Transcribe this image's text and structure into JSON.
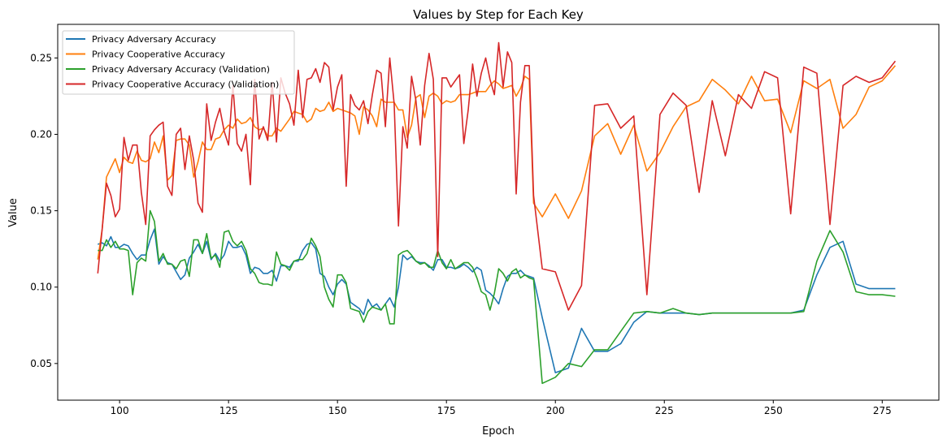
{
  "chart_data": {
    "type": "line",
    "title": "Values by Step for Each Key",
    "xlabel": "Epoch",
    "ylabel": "Value",
    "xlim": [
      85.8,
      288
    ],
    "ylim": [
      0.026,
      0.272
    ],
    "xticks": [
      100,
      125,
      150,
      175,
      200,
      225,
      250,
      275
    ],
    "xtick_labels": [
      "100",
      "125",
      "150",
      "175",
      "200",
      "225",
      "250",
      "275"
    ],
    "yticks": [
      0.05,
      0.1,
      0.15,
      0.2,
      0.25
    ],
    "ytick_labels": [
      "0.05",
      "0.10",
      "0.15",
      "0.20",
      "0.25"
    ],
    "grid": false,
    "legend_placement": "upper-left",
    "x": [
      95,
      96,
      97,
      98,
      99,
      100,
      101,
      102,
      103,
      104,
      105,
      106,
      107,
      108,
      109,
      110,
      111,
      112,
      113,
      114,
      115,
      116,
      117,
      118,
      119,
      120,
      121,
      122,
      123,
      124,
      125,
      126,
      127,
      128,
      129,
      130,
      131,
      132,
      133,
      134,
      135,
      136,
      137,
      138,
      139,
      140,
      141,
      142,
      143,
      144,
      145,
      146,
      147,
      148,
      149,
      150,
      151,
      152,
      153,
      154,
      155,
      156,
      157,
      158,
      159,
      160,
      161,
      162,
      163,
      164,
      165,
      166,
      167,
      168,
      169,
      170,
      171,
      172,
      173,
      174,
      175,
      176,
      177,
      178,
      179,
      180,
      181,
      182,
      183,
      184,
      185,
      186,
      187,
      188,
      189,
      190,
      191,
      192,
      193,
      194,
      195,
      197,
      200,
      203,
      206,
      209,
      212,
      215,
      218,
      221,
      224,
      227,
      230,
      233,
      236,
      239,
      242,
      245,
      248,
      251,
      254,
      257,
      260,
      263,
      266,
      269,
      272,
      275,
      278
    ],
    "series": [
      {
        "name": "Privacy Adversary Accuracy",
        "color": "#1f77b4",
        "values": [
          0.128,
          0.129,
          0.127,
          0.133,
          0.126,
          0.126,
          0.128,
          0.127,
          0.122,
          0.118,
          0.121,
          0.121,
          0.131,
          0.138,
          0.115,
          0.12,
          0.116,
          0.115,
          0.11,
          0.105,
          0.108,
          0.119,
          0.123,
          0.128,
          0.122,
          0.13,
          0.118,
          0.122,
          0.117,
          0.121,
          0.13,
          0.126,
          0.126,
          0.127,
          0.121,
          0.109,
          0.113,
          0.112,
          0.109,
          0.109,
          0.111,
          0.104,
          0.114,
          0.114,
          0.113,
          0.117,
          0.117,
          0.124,
          0.128,
          0.129,
          0.125,
          0.109,
          0.107,
          0.1,
          0.095,
          0.102,
          0.105,
          0.102,
          0.09,
          0.088,
          0.086,
          0.082,
          0.092,
          0.087,
          0.089,
          0.085,
          0.089,
          0.093,
          0.087,
          0.1,
          0.121,
          0.118,
          0.12,
          0.117,
          0.116,
          0.116,
          0.114,
          0.111,
          0.118,
          0.118,
          0.113,
          0.113,
          0.112,
          0.113,
          0.115,
          0.113,
          0.11,
          0.113,
          0.111,
          0.098,
          0.096,
          0.093,
          0.089,
          0.099,
          0.107,
          0.109,
          0.109,
          0.111,
          0.108,
          0.107,
          0.106,
          0.08,
          0.044,
          0.047,
          0.073,
          0.058,
          0.058,
          0.063,
          0.077,
          0.084,
          0.083,
          0.083,
          0.083,
          0.082,
          0.083,
          0.083,
          0.083,
          0.083,
          0.083,
          0.083,
          0.083,
          0.085,
          0.108,
          0.126,
          0.13,
          0.102,
          0.099,
          0.099,
          0.099
        ]
      },
      {
        "name": "Privacy Cooperative Accuracy",
        "color": "#ff7f0e",
        "values": [
          0.118,
          0.138,
          0.172,
          0.178,
          0.184,
          0.175,
          0.185,
          0.182,
          0.181,
          0.189,
          0.183,
          0.182,
          0.184,
          0.195,
          0.188,
          0.199,
          0.17,
          0.173,
          0.196,
          0.197,
          0.197,
          0.193,
          0.172,
          0.182,
          0.195,
          0.19,
          0.19,
          0.197,
          0.198,
          0.203,
          0.206,
          0.204,
          0.21,
          0.207,
          0.208,
          0.211,
          0.205,
          0.203,
          0.204,
          0.199,
          0.199,
          0.204,
          0.202,
          0.206,
          0.21,
          0.215,
          0.214,
          0.213,
          0.208,
          0.21,
          0.217,
          0.215,
          0.216,
          0.221,
          0.215,
          0.217,
          0.216,
          0.215,
          0.214,
          0.212,
          0.2,
          0.218,
          0.216,
          0.212,
          0.205,
          0.223,
          0.221,
          0.221,
          0.221,
          0.216,
          0.216,
          0.198,
          0.206,
          0.224,
          0.226,
          0.211,
          0.225,
          0.227,
          0.225,
          0.22,
          0.222,
          0.221,
          0.222,
          0.226,
          0.226,
          0.226,
          0.227,
          0.228,
          0.228,
          0.228,
          0.232,
          0.235,
          0.233,
          0.23,
          0.231,
          0.232,
          0.225,
          0.23,
          0.238,
          0.236,
          0.155,
          0.146,
          0.161,
          0.145,
          0.163,
          0.199,
          0.207,
          0.187,
          0.206,
          0.176,
          0.188,
          0.205,
          0.218,
          0.222,
          0.236,
          0.229,
          0.22,
          0.238,
          0.222,
          0.223,
          0.201,
          0.235,
          0.23,
          0.236,
          0.204,
          0.213,
          0.231,
          0.235,
          0.245
        ]
      },
      {
        "name": "Privacy Adversary Accuracy (Validation)",
        "color": "#2ca02c",
        "values": [
          0.124,
          0.124,
          0.131,
          0.126,
          0.13,
          0.125,
          0.125,
          0.124,
          0.095,
          0.116,
          0.119,
          0.117,
          0.15,
          0.143,
          0.117,
          0.122,
          0.115,
          0.115,
          0.112,
          0.117,
          0.118,
          0.107,
          0.131,
          0.131,
          0.122,
          0.135,
          0.119,
          0.121,
          0.113,
          0.136,
          0.137,
          0.13,
          0.127,
          0.13,
          0.124,
          0.112,
          0.109,
          0.103,
          0.102,
          0.102,
          0.101,
          0.123,
          0.115,
          0.114,
          0.111,
          0.117,
          0.118,
          0.118,
          0.122,
          0.132,
          0.127,
          0.12,
          0.1,
          0.092,
          0.087,
          0.108,
          0.108,
          0.103,
          0.086,
          0.085,
          0.084,
          0.077,
          0.084,
          0.087,
          0.086,
          0.085,
          0.089,
          0.076,
          0.076,
          0.121,
          0.123,
          0.124,
          0.121,
          0.117,
          0.115,
          0.116,
          0.113,
          0.113,
          0.124,
          0.116,
          0.112,
          0.118,
          0.112,
          0.114,
          0.116,
          0.116,
          0.113,
          0.106,
          0.097,
          0.095,
          0.085,
          0.096,
          0.112,
          0.109,
          0.104,
          0.11,
          0.112,
          0.106,
          0.108,
          0.106,
          0.105,
          0.037,
          0.041,
          0.05,
          0.048,
          0.059,
          0.059,
          0.071,
          0.083,
          0.084,
          0.083,
          0.086,
          0.083,
          0.082,
          0.083,
          0.083,
          0.083,
          0.083,
          0.083,
          0.083,
          0.083,
          0.084,
          0.117,
          0.137,
          0.123,
          0.097,
          0.095,
          0.095,
          0.094
        ]
      },
      {
        "name": "Privacy Cooperative Accuracy (Validation)",
        "color": "#d62728",
        "values": [
          0.109,
          0.138,
          0.168,
          0.16,
          0.146,
          0.151,
          0.198,
          0.183,
          0.193,
          0.193,
          0.162,
          0.141,
          0.199,
          0.203,
          0.206,
          0.208,
          0.166,
          0.16,
          0.2,
          0.204,
          0.177,
          0.199,
          0.183,
          0.155,
          0.149,
          0.22,
          0.196,
          0.208,
          0.217,
          0.202,
          0.193,
          0.232,
          0.194,
          0.189,
          0.2,
          0.167,
          0.236,
          0.197,
          0.205,
          0.196,
          0.234,
          0.195,
          0.237,
          0.227,
          0.22,
          0.206,
          0.242,
          0.211,
          0.236,
          0.237,
          0.243,
          0.234,
          0.247,
          0.244,
          0.216,
          0.231,
          0.239,
          0.166,
          0.226,
          0.219,
          0.216,
          0.222,
          0.207,
          0.226,
          0.242,
          0.24,
          0.205,
          0.25,
          0.22,
          0.14,
          0.205,
          0.191,
          0.238,
          0.222,
          0.193,
          0.232,
          0.253,
          0.236,
          0.12,
          0.237,
          0.237,
          0.231,
          0.235,
          0.239,
          0.194,
          0.216,
          0.246,
          0.225,
          0.24,
          0.25,
          0.236,
          0.226,
          0.26,
          0.231,
          0.254,
          0.247,
          0.161,
          0.221,
          0.245,
          0.245,
          0.16,
          0.112,
          0.11,
          0.085,
          0.101,
          0.219,
          0.22,
          0.204,
          0.212,
          0.095,
          0.213,
          0.227,
          0.219,
          0.162,
          0.222,
          0.186,
          0.226,
          0.217,
          0.241,
          0.237,
          0.148,
          0.244,
          0.24,
          0.141,
          0.232,
          0.238,
          0.234,
          0.237,
          0.248
        ]
      }
    ]
  }
}
